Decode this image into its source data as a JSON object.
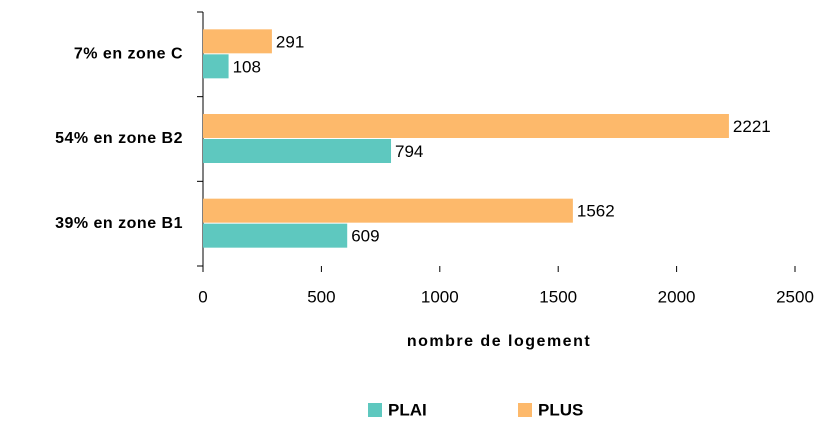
{
  "chart_data": {
    "type": "barh",
    "categories": [
      "7% en zone C",
      "54% en zone B2",
      "39% en zone B1"
    ],
    "series": [
      {
        "name": "PLAI",
        "color": "#5ec8bf",
        "values": [
          108,
          794,
          609
        ]
      },
      {
        "name": "PLUS",
        "color": "#fdb96b",
        "values": [
          291,
          2221,
          1562
        ]
      }
    ],
    "xlabel": "nombre de logement",
    "xlim": [
      0,
      2500
    ],
    "xticks": [
      0,
      500,
      1000,
      1500,
      2000,
      2500
    ],
    "legend": "bottom"
  }
}
